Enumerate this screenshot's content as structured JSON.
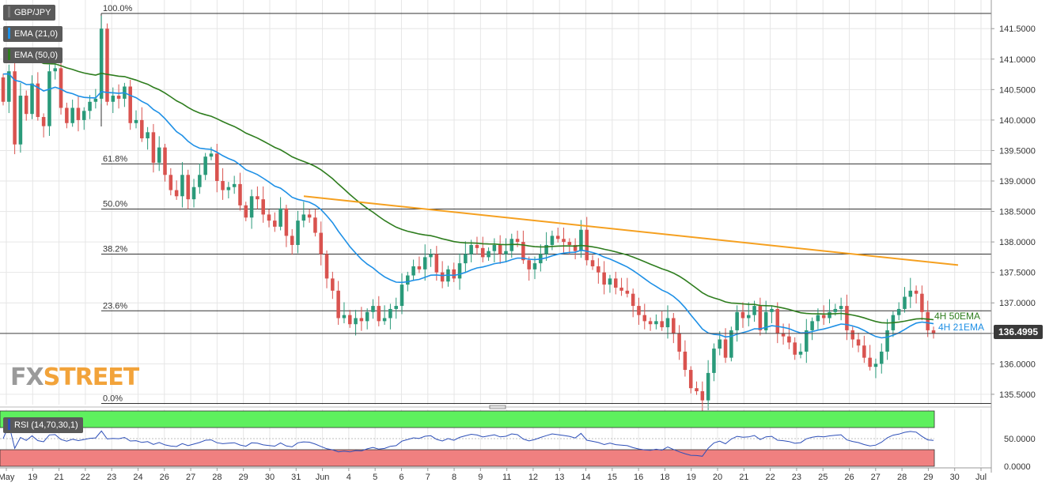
{
  "chart_data": {
    "type": "candlestick",
    "symbol": "GBP/JPY",
    "legend": [
      "GBP/JPY",
      "EMA (21,0)",
      "EMA (50,0)"
    ],
    "colors": {
      "up": "#2a9a7a",
      "down": "#d9534f",
      "ema21": "#1e90e6",
      "ema50": "#2e7d1e",
      "trendline": "#f5a020",
      "grid": "#e6e6e6",
      "rsi_line": "#2d4fb8",
      "rsi_upper_band": "#5ef05e",
      "rsi_lower_band": "#f08080"
    },
    "y_axis": {
      "ylim": [
        135.33,
        141.97
      ],
      "ticks": [
        "141.5000",
        "141.0000",
        "140.5000",
        "140.0000",
        "139.5000",
        "139.0000",
        "138.5000",
        "138.0000",
        "137.5000",
        "137.0000",
        "136.5000",
        "136.0000",
        "135.5000"
      ]
    },
    "x_axis": {
      "labels": [
        "May",
        "19",
        "21",
        "22",
        "23",
        "24",
        "26",
        "27",
        "28",
        "29",
        "30",
        "31",
        "Jun",
        "4",
        "5",
        "6",
        "7",
        "8",
        "9",
        "11",
        "12",
        "13",
        "14",
        "15",
        "16",
        "18",
        "19",
        "20",
        "21",
        "22",
        "23",
        "25",
        "26",
        "27",
        "28",
        "29",
        "30",
        "Jul"
      ]
    },
    "fibonacci": [
      {
        "label": "100.0%",
        "price": 141.75
      },
      {
        "label": "61.8%",
        "price": 139.28
      },
      {
        "label": "50.0%",
        "price": 138.54
      },
      {
        "label": "38.2%",
        "price": 137.8
      },
      {
        "label": "23.6%",
        "price": 136.87
      },
      {
        "label": "0.0%",
        "price": 135.35
      }
    ],
    "trendline": {
      "from_price": 138.75,
      "to_price": 137.62
    },
    "current_price": "136.4995",
    "current_price_value": 136.4995,
    "annotations": [
      "4H 50EMA",
      "4H 21EMA"
    ],
    "rsi": {
      "label": "RSI (14,70,30,1)",
      "ticks": [
        "50.0000",
        "0.0000"
      ],
      "upper": 70,
      "lower": 30
    },
    "watermark": {
      "part1": "FX",
      "part2": "STREET"
    },
    "ohlc_path": [
      140.7,
      140.3,
      140.8,
      139.6,
      140.4,
      140.1,
      140.6,
      140.05,
      139.9,
      140.8,
      140.85,
      140.2,
      139.95,
      140.2,
      140.0,
      140.15,
      140.3,
      140.35,
      141.5,
      140.3,
      140.4,
      140.35,
      140.55,
      139.95,
      140.0,
      139.7,
      139.8,
      139.3,
      139.55,
      139.1,
      138.85,
      138.75,
      139.1,
      138.7,
      138.9,
      139.1,
      139.4,
      139.45,
      139.0,
      138.85,
      138.9,
      138.95,
      138.6,
      138.4,
      138.75,
      138.7,
      138.45,
      138.35,
      138.25,
      138.55,
      138.1,
      137.95,
      138.35,
      138.45,
      138.4,
      138.15,
      137.8,
      137.4,
      137.2,
      136.75,
      136.8,
      136.65,
      136.75,
      136.7,
      136.85,
      136.95,
      136.7,
      136.75,
      136.9,
      136.95,
      137.3,
      137.45,
      137.6,
      137.55,
      137.75,
      137.8,
      137.5,
      137.35,
      137.55,
      137.4,
      137.65,
      137.8,
      137.95,
      137.9,
      137.75,
      137.85,
      137.95,
      137.8,
      137.85,
      138.05,
      138.0,
      137.7,
      137.55,
      137.65,
      137.8,
      137.95,
      138.1,
      138.05,
      138.0,
      137.95,
      137.85,
      138.2,
      137.7,
      137.6,
      137.5,
      137.3,
      137.4,
      137.25,
      137.2,
      137.15,
      136.95,
      136.8,
      136.7,
      136.65,
      136.7,
      136.6,
      136.75,
      136.5,
      136.2,
      135.9,
      135.6,
      135.55,
      135.4,
      135.85,
      136.25,
      136.4,
      136.1,
      136.55,
      136.85,
      136.75,
      136.8,
      136.95,
      136.55,
      136.85,
      136.9,
      136.5,
      136.45,
      136.35,
      136.15,
      136.2,
      136.55,
      136.7,
      136.8,
      136.75,
      136.85,
      136.9,
      136.95,
      136.55,
      136.4,
      136.3,
      136.1,
      135.95,
      136.0,
      136.2,
      136.55,
      136.8,
      136.9,
      137.1,
      137.2,
      137.15,
      136.85,
      136.55,
      136.5
    ]
  }
}
